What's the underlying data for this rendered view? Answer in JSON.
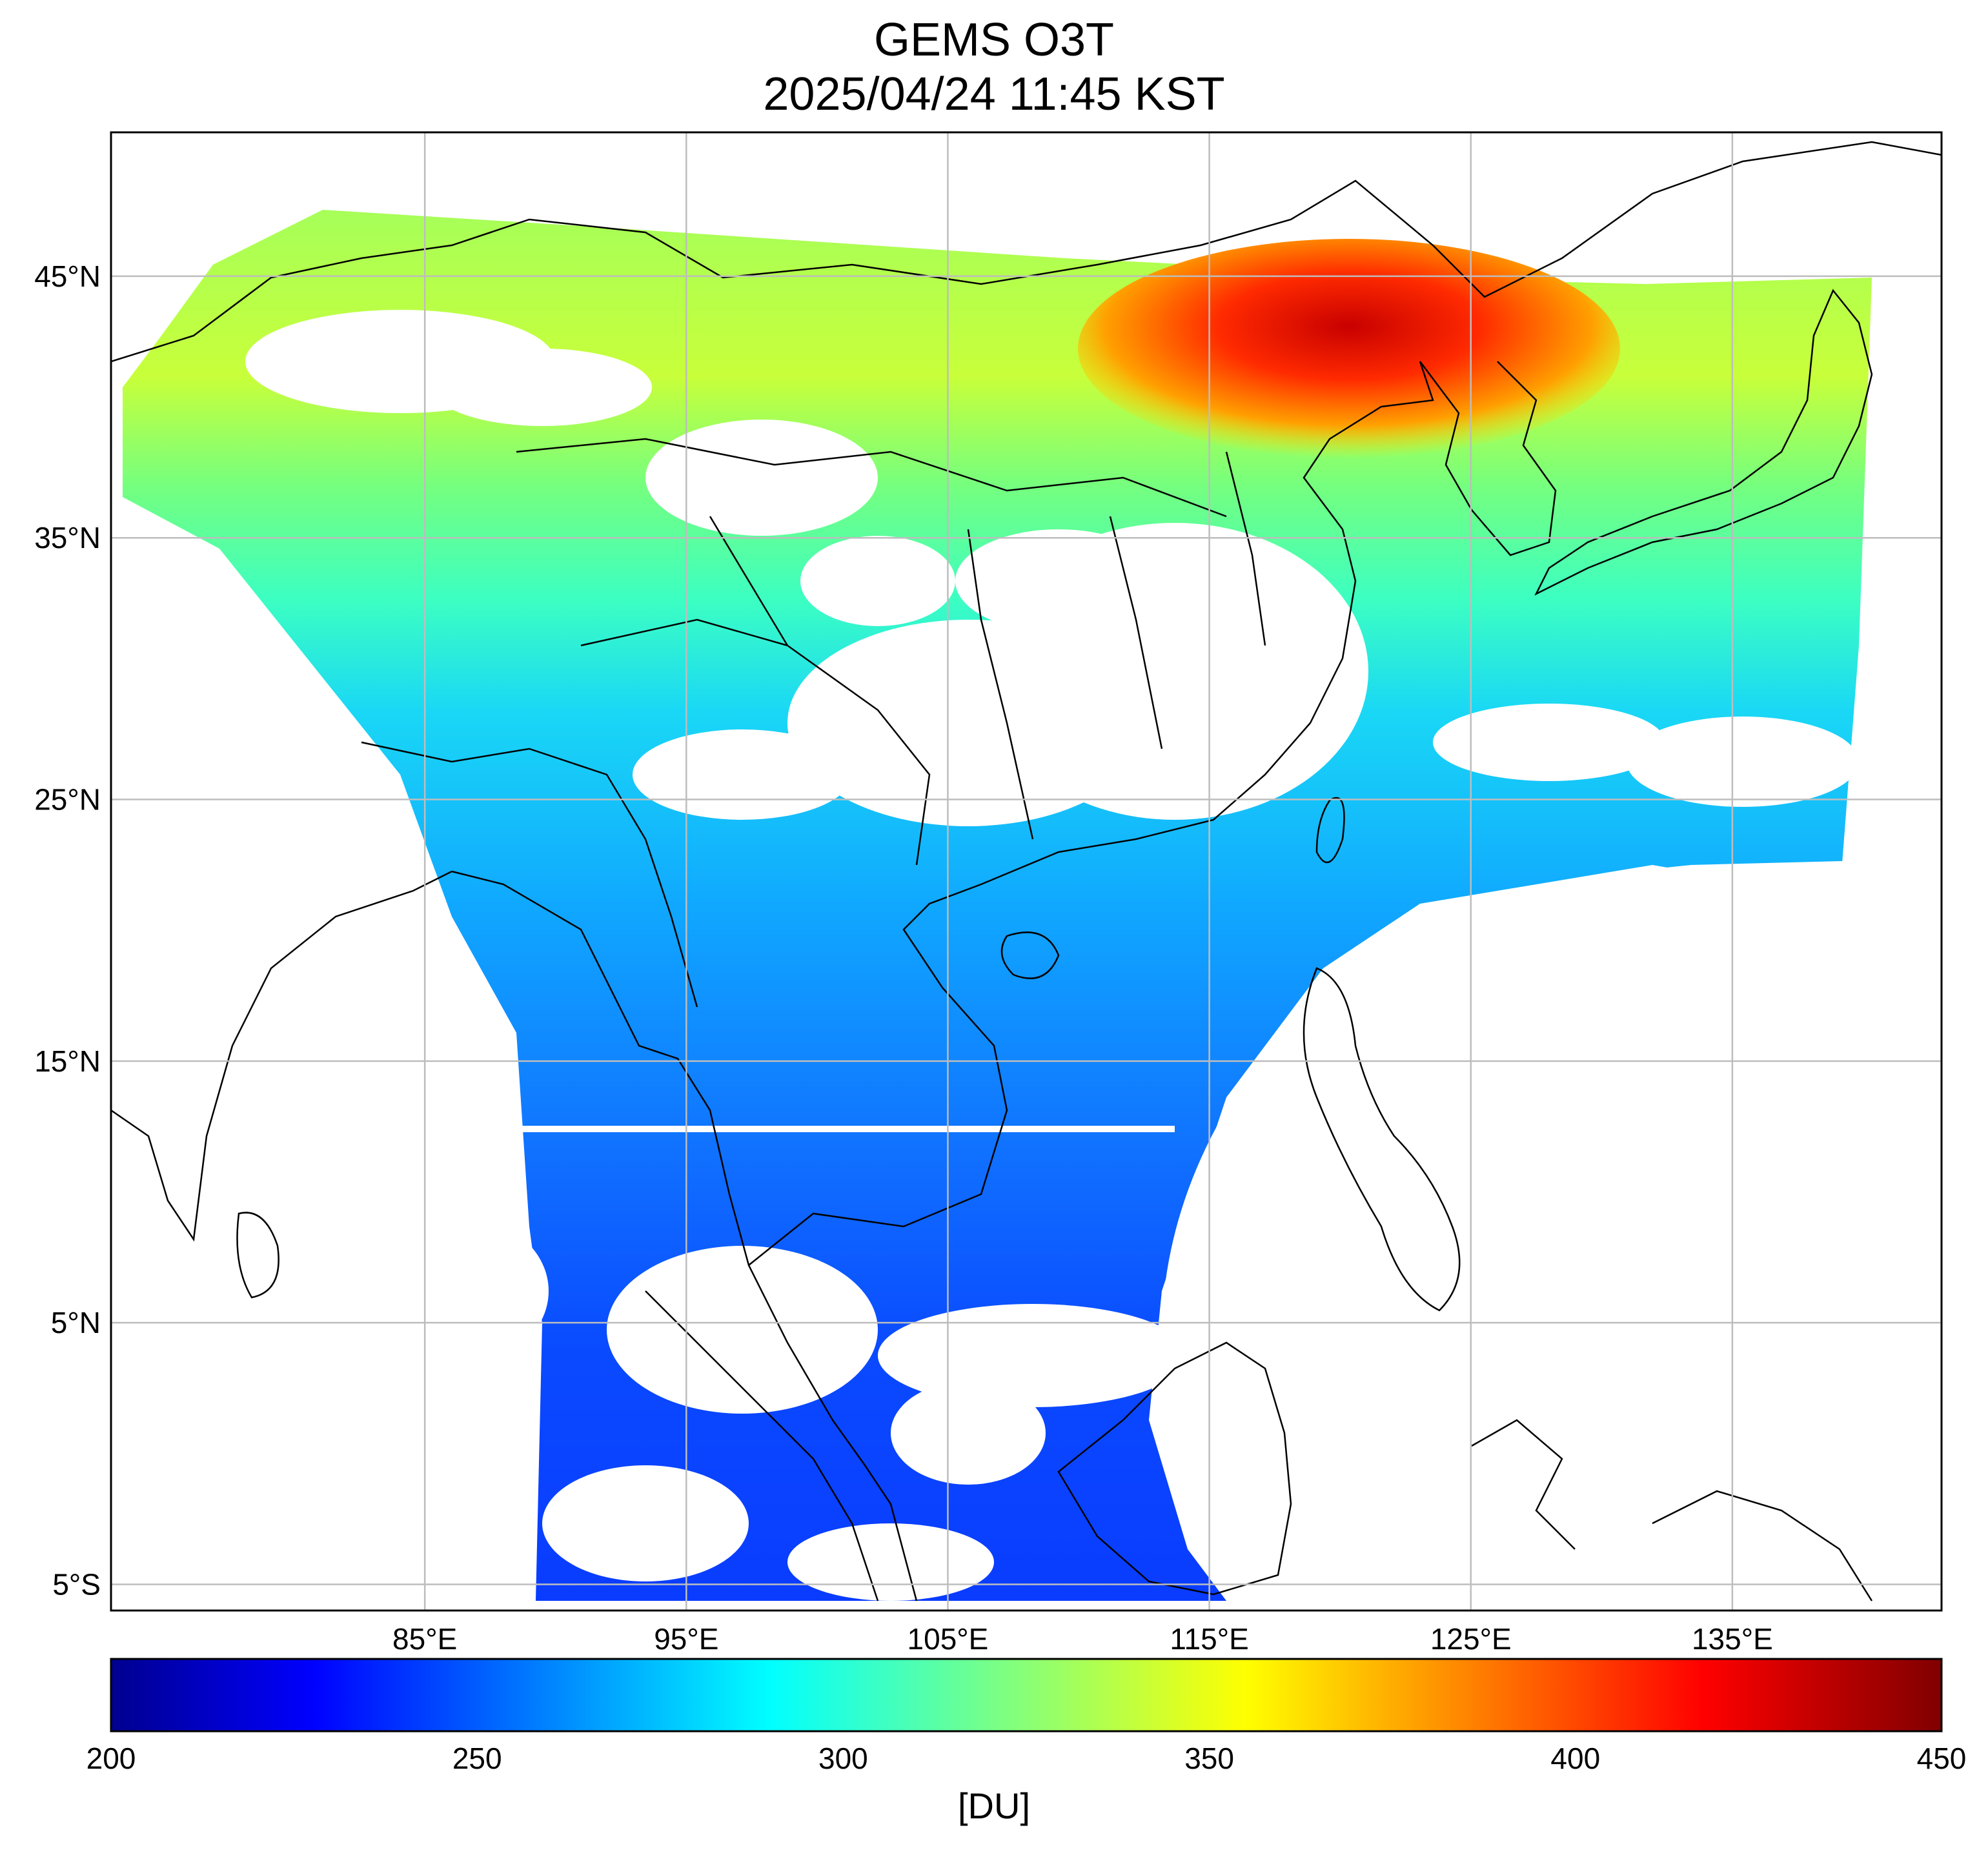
{
  "title": "GEMS O3T",
  "subtitle": "2025/04/24 11:45 KST",
  "map": {
    "lon_range": [
      73,
      143
    ],
    "lat_range": [
      -6,
      50.5
    ],
    "lon_ticks": [
      {
        "value": 85,
        "label": "85°E"
      },
      {
        "value": 95,
        "label": "95°E"
      },
      {
        "value": 105,
        "label": "105°E"
      },
      {
        "value": 115,
        "label": "115°E"
      },
      {
        "value": 125,
        "label": "125°E"
      },
      {
        "value": 135,
        "label": "135°E"
      }
    ],
    "lat_ticks": [
      {
        "value": 45,
        "label": "45°N"
      },
      {
        "value": 35,
        "label": "35°N"
      },
      {
        "value": 25,
        "label": "25°N"
      },
      {
        "value": 15,
        "label": "15°N"
      },
      {
        "value": 5,
        "label": "5°N"
      },
      {
        "value": -5,
        "label": "5°S"
      }
    ],
    "grid": true
  },
  "colorbar": {
    "min": 200,
    "max": 450,
    "ticks": [
      "200",
      "250",
      "300",
      "350",
      "400",
      "450"
    ],
    "unit": "[DU]",
    "colormap": "jet",
    "stops": [
      "#00008f",
      "#0000ff",
      "#00ffff",
      "#ffff00",
      "#ff0000",
      "#800000"
    ]
  }
}
